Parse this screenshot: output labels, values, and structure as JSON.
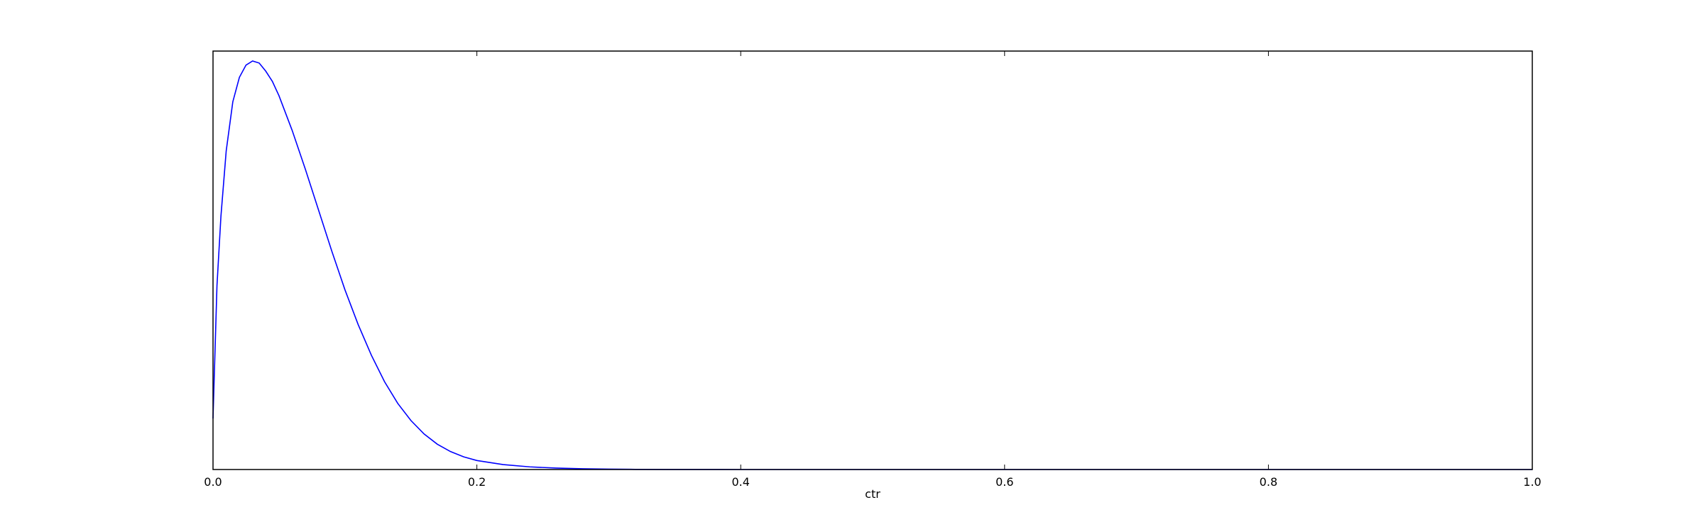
{
  "chart_data": {
    "type": "line",
    "title": "",
    "xlabel": "ctr",
    "ylabel": "",
    "xlim": [
      0.0,
      1.0
    ],
    "x_ticks": [
      0.0,
      0.2,
      0.4,
      0.6,
      0.8,
      1.0
    ],
    "x_tick_labels": [
      "0.0",
      "0.2",
      "0.4",
      "0.6",
      "0.8",
      "1.0"
    ],
    "y_ticks_visible": false,
    "grid": false,
    "legend": "none",
    "series": [
      {
        "color": "#0000ff",
        "x": [
          0.0,
          0.003,
          0.006,
          0.01,
          0.015,
          0.02,
          0.025,
          0.03,
          0.035,
          0.04,
          0.045,
          0.05,
          0.06,
          0.07,
          0.08,
          0.09,
          0.1,
          0.11,
          0.12,
          0.13,
          0.14,
          0.15,
          0.16,
          0.17,
          0.18,
          0.19,
          0.2,
          0.22,
          0.24,
          0.26,
          0.28,
          0.3,
          0.32,
          0.35,
          0.38,
          0.4,
          0.45,
          0.5,
          0.6,
          0.7,
          0.8,
          0.9,
          1.0
        ],
        "y": [
          0.125,
          0.45,
          0.62,
          0.78,
          0.9,
          0.96,
          0.99,
          1.0,
          0.995,
          0.975,
          0.95,
          0.915,
          0.83,
          0.735,
          0.635,
          0.535,
          0.44,
          0.355,
          0.28,
          0.215,
          0.162,
          0.12,
          0.087,
          0.062,
          0.044,
          0.031,
          0.022,
          0.012,
          0.0065,
          0.0035,
          0.0018,
          0.0009,
          0.0004,
          0.00015,
          5e-05,
          2e-05,
          0.0,
          0.0,
          0.0,
          0.0,
          0.0,
          0.0,
          0.0
        ]
      }
    ]
  }
}
